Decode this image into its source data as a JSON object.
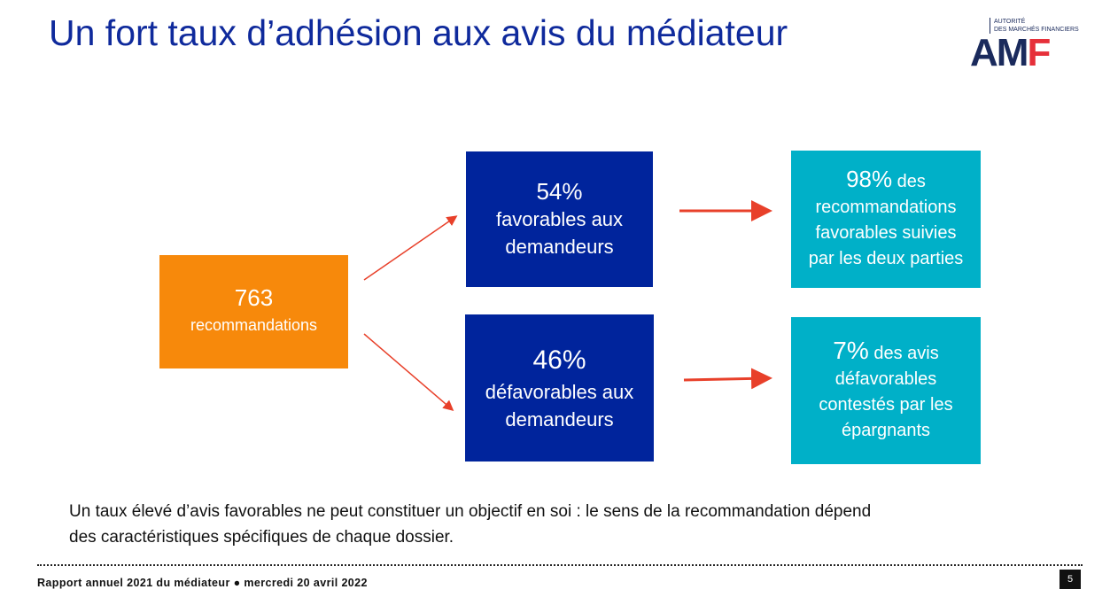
{
  "title": "Un fort taux d’adhésion aux avis du médiateur",
  "logo": {
    "line1": "AUTORITÉ",
    "line2": "DES MARCHÉS FINANCIERS",
    "mark": "AMF"
  },
  "source": {
    "value": "763",
    "label": "recommandations"
  },
  "favorable": {
    "value": "54%",
    "label1": "favorables aux",
    "label2": "demandeurs"
  },
  "unfavorable": {
    "value": "46%",
    "label1": "défavorables aux",
    "label2": "demandeurs"
  },
  "fav_result": {
    "value": "98%",
    "rest": " des",
    "l2": "recommandations",
    "l3": "favorables suivies",
    "l4": "par les deux parties"
  },
  "unfav_result": {
    "value": "7%",
    "rest": " des avis",
    "l2": "défavorables",
    "l3": "contestés par les",
    "l4": "épargnants"
  },
  "note": {
    "line1": "Un taux élevé d’avis favorables ne peut constituer un objectif en soi : le sens de la recommandation dépend",
    "line2": "des caractéristiques spécifiques de chaque dossier."
  },
  "footer": "Rapport annuel 2021 du médiateur ● mercredi 20 avril 2022",
  "page_number": "5",
  "colors": {
    "orange": "#f7890b",
    "navy": "#00249c",
    "teal": "#00b0c8",
    "arrow": "#e8402a",
    "title": "#0f2a9c"
  }
}
